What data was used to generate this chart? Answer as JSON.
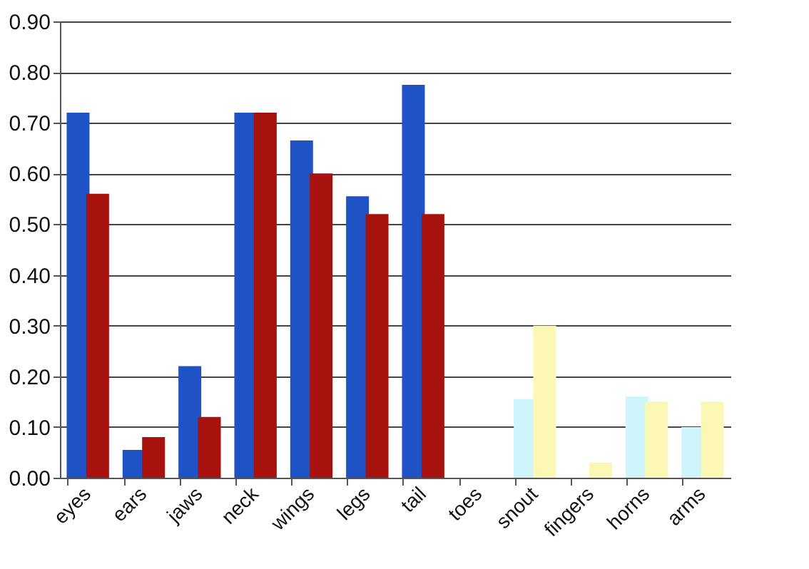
{
  "chart_data": {
    "type": "bar",
    "categories": [
      "eyes",
      "ears",
      "jaws",
      "neck",
      "wings",
      "legs",
      "tail",
      "toes",
      "snout",
      "fingers",
      "horns",
      "arms"
    ],
    "series": [
      {
        "colors": [
          "#1f52c4",
          "#1f52c4",
          "#1f52c4",
          "#1f52c4",
          "#1f52c4",
          "#1f52c4",
          "#1f52c4",
          "#cdf5fb",
          "#cdf5fb",
          "#cdf5fb",
          "#cdf5fb",
          "#cdf5fb"
        ],
        "values": [
          0.72,
          0.055,
          0.22,
          0.72,
          0.665,
          0.555,
          0.775,
          0,
          0.155,
          0,
          0.16,
          0.1
        ]
      },
      {
        "colors": [
          "#a8120e",
          "#a8120e",
          "#a8120e",
          "#a8120e",
          "#a8120e",
          "#a8120e",
          "#a8120e",
          "#fbf7b5",
          "#fbf7b5",
          "#fbf7b5",
          "#fbf7b5",
          "#fbf7b5"
        ],
        "values": [
          0.56,
          0.08,
          0.12,
          0.72,
          0.6,
          0.52,
          0.52,
          0,
          0.3,
          0.03,
          0.15,
          0.15
        ]
      }
    ],
    "ylim": [
      0,
      0.9
    ],
    "yticks": [
      {
        "value": 0,
        "label": "0.00"
      },
      {
        "value": 0.1,
        "label": "0.10"
      },
      {
        "value": 0.2,
        "label": "0.20"
      },
      {
        "value": 0.3,
        "label": "0.30"
      },
      {
        "value": 0.4,
        "label": "0.40"
      },
      {
        "value": 0.5,
        "label": "0.50"
      },
      {
        "value": 0.6,
        "label": "0.60"
      },
      {
        "value": 0.7,
        "label": "0.70"
      },
      {
        "value": 0.8,
        "label": "0.80"
      },
      {
        "value": 0.9,
        "label": "0.90"
      }
    ],
    "grid": "y"
  }
}
